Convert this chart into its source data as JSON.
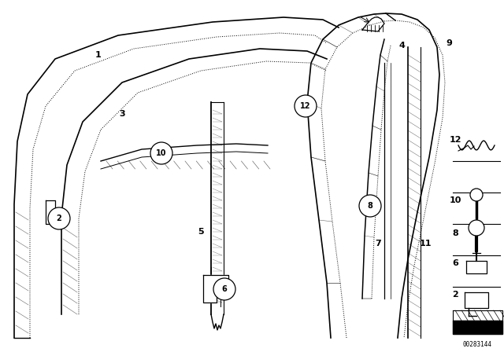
{
  "bg_color": "#ffffff",
  "fig_width": 6.4,
  "fig_height": 4.48,
  "dpi": 100,
  "diagram_id": "00283144",
  "line_color": "#000000",
  "label_fontsize": 8
}
